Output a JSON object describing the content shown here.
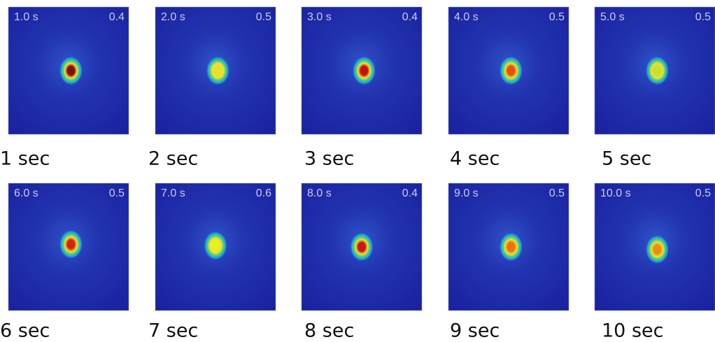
{
  "panels": [
    {
      "time": "1.0 s",
      "value": 0.4,
      "caption": "1 sec"
    },
    {
      "time": "2.0 s",
      "value": 0.5,
      "caption": "2 sec"
    },
    {
      "time": "3.0 s",
      "value": 0.4,
      "caption": "3 sec"
    },
    {
      "time": "4.0 s",
      "value": 0.5,
      "caption": "4 sec"
    },
    {
      "time": "5.0 s",
      "value": 0.5,
      "caption": "5 sec"
    },
    {
      "time": "6.0 s",
      "value": 0.5,
      "caption": "6 sec"
    },
    {
      "time": "7.0 s",
      "value": 0.6,
      "caption": "7 sec"
    },
    {
      "time": "8.0 s",
      "value": 0.4,
      "caption": "8 sec"
    },
    {
      "time": "9.0 s",
      "value": 0.5,
      "caption": "9 sec"
    },
    {
      "time": "10.0 s",
      "value": 0.5,
      "caption": "10 sec"
    }
  ]
}
